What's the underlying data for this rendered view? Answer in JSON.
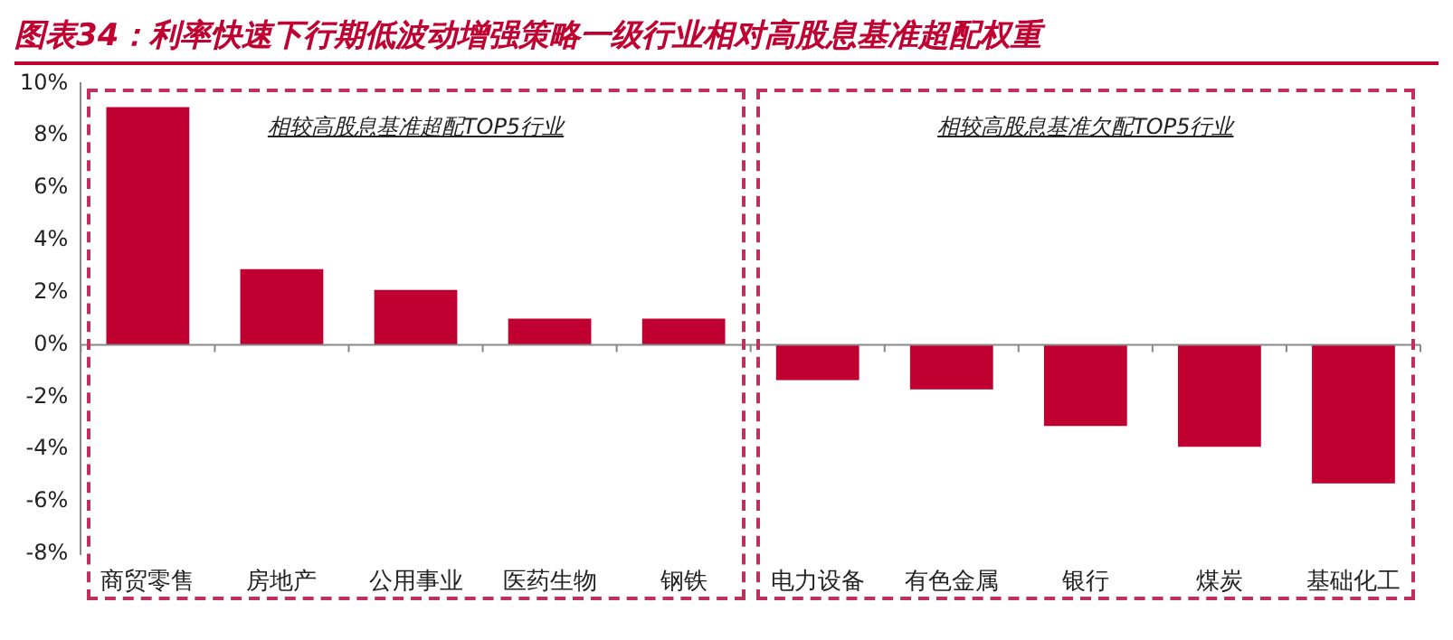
{
  "chart_data": {
    "type": "bar",
    "title": "图表34：利率快速下行期低波动增强策略一级行业相对高股息基准超配权重",
    "categories": [
      "商贸零售",
      "房地产",
      "公用事业",
      "医药生物",
      "钢铁",
      "电力设备",
      "有色金属",
      "银行",
      "煤炭",
      "基础化工"
    ],
    "values": [
      9.1,
      2.9,
      2.1,
      1.0,
      1.0,
      -1.35,
      -1.7,
      -3.1,
      -3.9,
      -5.3
    ],
    "color": "#c00030",
    "ylim": [
      -8,
      10
    ],
    "yticks": [
      {
        "value": -8,
        "label": "-8%"
      },
      {
        "value": -6,
        "label": "-6%"
      },
      {
        "value": -4,
        "label": "-4%"
      },
      {
        "value": -2,
        "label": "-2%"
      },
      {
        "value": 0,
        "label": "0%"
      },
      {
        "value": 2,
        "label": "2%"
      },
      {
        "value": 4,
        "label": "4%"
      },
      {
        "value": 6,
        "label": "6%"
      },
      {
        "value": 8,
        "label": "8%"
      },
      {
        "value": 10,
        "label": "10%"
      }
    ],
    "annotations": [
      "相较高股息基准超配TOP5行业",
      "相较高股息基准欠配TOP5行业"
    ],
    "legend": false
  }
}
